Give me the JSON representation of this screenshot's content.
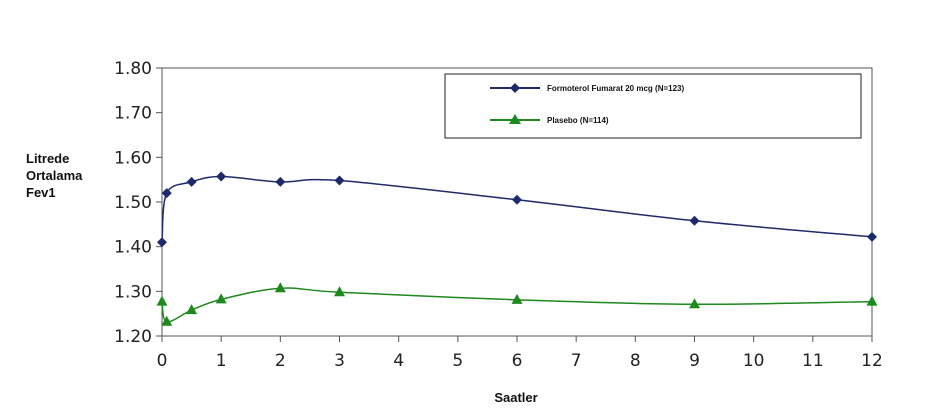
{
  "chart_data": {
    "type": "line",
    "xlabel": "Saatler",
    "ylabel_lines": [
      "Litrede",
      "Ortalama",
      "Fev1"
    ],
    "x_ticks": [
      0,
      1,
      2,
      3,
      4,
      5,
      6,
      7,
      8,
      9,
      10,
      11,
      12
    ],
    "y_ticks": [
      "1.20",
      "1.30",
      "1.40",
      "1.50",
      "1.60",
      "1.70",
      "1.80"
    ],
    "xlim": [
      0,
      12
    ],
    "ylim": [
      1.2,
      1.8
    ],
    "grid": false,
    "legend_position": "top-right",
    "x": [
      0,
      0.08,
      0.5,
      1,
      2,
      3,
      6,
      9,
      12
    ],
    "series": [
      {
        "name": "Formoterol Fumarat 20 mcg (N=123)",
        "color": "#1f2a6b",
        "marker": "diamond",
        "values": [
          1.41,
          1.52,
          1.545,
          1.557,
          1.545,
          1.548,
          1.505,
          1.458,
          1.422
        ]
      },
      {
        "name": "Plasebo (N=114)",
        "color": "#1e8a1e",
        "marker": "triangle",
        "values": [
          1.277,
          1.232,
          1.258,
          1.282,
          1.307,
          1.298,
          1.281,
          1.271,
          1.277
        ]
      }
    ]
  }
}
